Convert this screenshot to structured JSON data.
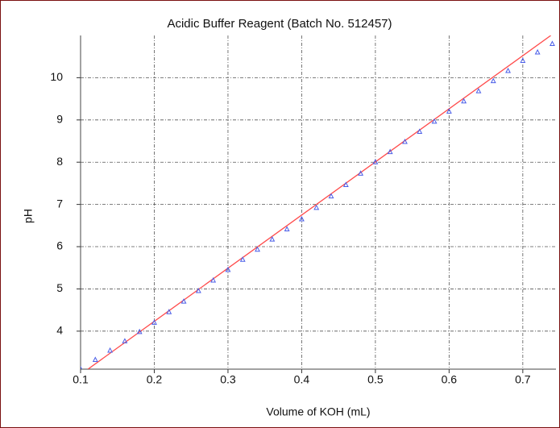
{
  "chart_data": {
    "type": "scatter",
    "title": "Acidic Buffer Reagent (Batch No. 512457)",
    "x_label": "Volume of KOH (mL)",
    "y_label": "pH",
    "xlim": [
      0.1,
      0.745
    ],
    "ylim": [
      3.1,
      11
    ],
    "xticks": [
      0.1,
      0.2,
      0.3,
      0.4,
      0.5,
      0.6,
      0.7
    ],
    "yticks": [
      4,
      5,
      6,
      7,
      8,
      9,
      10
    ],
    "grid": true,
    "series": [
      {
        "type": "scatter",
        "color": "#4a5ee8",
        "x": [
          0.1,
          0.12,
          0.14,
          0.16,
          0.18,
          0.2,
          0.22,
          0.24,
          0.26,
          0.28,
          0.3,
          0.32,
          0.34,
          0.36,
          0.38,
          0.4,
          0.42,
          0.44,
          0.46,
          0.48,
          0.5,
          0.52,
          0.54,
          0.56,
          0.58,
          0.6,
          0.62,
          0.64,
          0.66,
          0.68,
          0.7,
          0.72,
          0.74
        ],
        "values": [
          3.1,
          3.32,
          3.54,
          3.76,
          3.98,
          4.2,
          4.45,
          4.7,
          4.95,
          5.2,
          5.45,
          5.69,
          5.93,
          6.17,
          6.41,
          6.65,
          6.92,
          7.19,
          7.46,
          7.73,
          8.0,
          8.24,
          8.48,
          8.72,
          8.96,
          9.2,
          9.44,
          9.68,
          9.92,
          10.16,
          10.4,
          10.6,
          10.8
        ]
      },
      {
        "type": "line",
        "color": "#ff4a4a",
        "x": [
          0.11,
          0.738
        ],
        "values": [
          3.1,
          11.0
        ]
      }
    ]
  }
}
